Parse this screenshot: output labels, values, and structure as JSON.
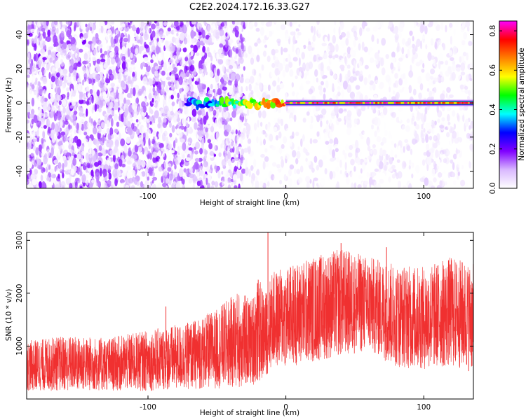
{
  "figure": {
    "title": "C2E2.2024.172.16.33.G27"
  },
  "chart_data": [
    {
      "type": "heatmap",
      "xlabel": "Height of straight line (km)",
      "ylabel": "Frequency (Hz)",
      "xlim": [
        -188,
        136
      ],
      "ylim": [
        -50,
        48
      ],
      "x_ticks": [
        -100,
        0,
        100
      ],
      "x_tick_labels": [
        "-100",
        "0",
        "100"
      ],
      "y_ticks": [
        -40,
        -20,
        0,
        20,
        40
      ],
      "y_tick_labels": [
        "-40",
        "-20",
        "0",
        "20",
        "40"
      ],
      "grid": false,
      "colorbar": {
        "label": "Normalized spectral amplitude",
        "range": [
          0,
          0.85
        ],
        "ticks": [
          0,
          0.2,
          0.4,
          0.6,
          0.8
        ],
        "tick_labels": [
          "0.0",
          "0.2",
          "0.4",
          "0.6",
          "0.8"
        ],
        "colormap": [
          "#ffffff",
          "#d9b8ff",
          "#8000ff",
          "#0000ff",
          "#00ffff",
          "#00ff00",
          "#ffff00",
          "#ff8000",
          "#ff0000",
          "#ff00ff"
        ]
      },
      "features": {
        "noise_regions": [
          {
            "x_from": -188,
            "x_to": -30,
            "amplitude": 0.12,
            "density": 0.9
          },
          {
            "x_from": -30,
            "x_to": 136,
            "amplitude": 0.04,
            "density": 0.35
          }
        ],
        "signal_line": {
          "frequency_hz": 0,
          "x_start": -72,
          "x_peak_start": 0,
          "x_end": 136,
          "peak_amplitude": 0.85
        }
      }
    },
    {
      "type": "line",
      "xlabel": "Height of straight line (km)",
      "ylabel": "SNR (10 * v/v)",
      "xlim": [
        -188,
        136
      ],
      "ylim": [
        0,
        3150
      ],
      "x_ticks": [
        -100,
        0,
        100
      ],
      "x_tick_labels": [
        "-100",
        "0",
        "100"
      ],
      "y_ticks": [
        1000,
        2000,
        3000
      ],
      "y_tick_labels": [
        "1000",
        "2000",
        "3000"
      ],
      "grid": false,
      "series": [
        {
          "color": "#f03030",
          "envelope": {
            "x": [
              -188,
              -160,
              -130,
              -100,
              -70,
              -50,
              -35,
              -25,
              -20,
              -15,
              -10,
              0,
              20,
              40,
              60,
              80,
              100,
              120,
              136
            ],
            "low": [
              150,
              150,
              150,
              150,
              180,
              200,
              200,
              250,
              300,
              400,
              600,
              600,
              700,
              800,
              900,
              600,
              550,
              600,
              500
            ],
            "high": [
              1100,
              1200,
              1150,
              1300,
              1450,
              1700,
              2050,
              1900,
              2300,
              2000,
              2400,
              2500,
              2700,
              2850,
              2700,
              2550,
              2500,
              2700,
              2550
            ]
          },
          "spikes": [
            {
              "x": -13,
              "value": 3150
            },
            {
              "x": 40,
              "value": 2950
            },
            {
              "x": 73,
              "value": 2870
            },
            {
              "x": -87,
              "value": 1750
            }
          ]
        }
      ]
    }
  ]
}
